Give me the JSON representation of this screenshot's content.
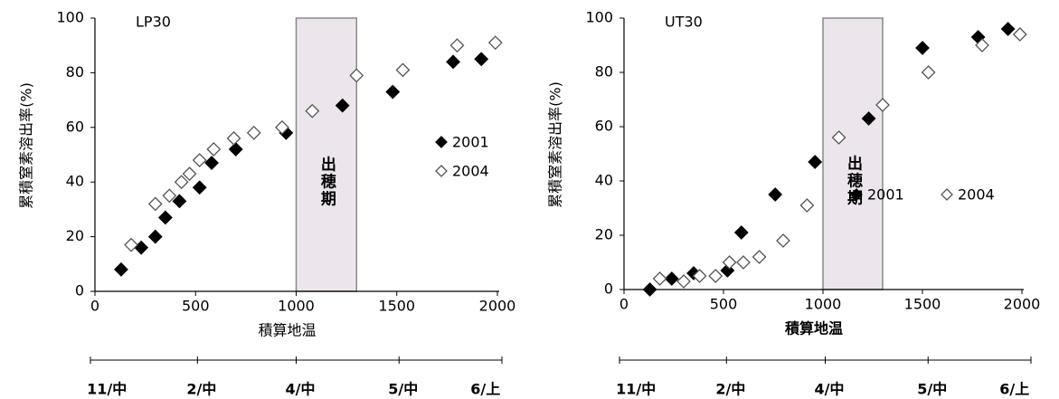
{
  "chart_data": [
    {
      "type": "scatter",
      "title": "LP30",
      "xlabel": "積算地温",
      "ylabel": "累積窒素溶出率(%)",
      "xlim": [
        0,
        2000
      ],
      "xticks": [
        0,
        500,
        1000,
        1500,
        2000
      ],
      "ylim": [
        0,
        100
      ],
      "yticks": [
        0,
        20,
        40,
        60,
        80,
        100
      ],
      "legend_orientation": "vertical",
      "shaded_span": {
        "x": [
          1000,
          1300
        ],
        "label": "出穂期"
      },
      "time_labels": [
        "11/中",
        "2/中",
        "4/中",
        "5/中",
        "6/上"
      ],
      "series": [
        {
          "name": "2001",
          "color": "#000000",
          "filled": true,
          "x": [
            130,
            230,
            300,
            350,
            420,
            520,
            580,
            700,
            950,
            1230,
            1480,
            1780,
            1920
          ],
          "values": [
            8,
            16,
            20,
            27,
            33,
            38,
            47,
            52,
            58,
            68,
            73,
            84,
            85
          ]
        },
        {
          "name": "2004",
          "color": "#555555",
          "filled": false,
          "x": [
            180,
            300,
            370,
            430,
            470,
            520,
            590,
            690,
            790,
            930,
            1080,
            1300,
            1530,
            1800,
            1990
          ],
          "values": [
            17,
            32,
            35,
            40,
            43,
            48,
            52,
            56,
            58,
            60,
            66,
            79,
            81,
            90,
            91
          ]
        }
      ]
    },
    {
      "type": "scatter",
      "title": "UT30",
      "xlabel": "積算地温",
      "ylabel": "累積窒素溶出率(%)",
      "xlim": [
        0,
        2000
      ],
      "xticks": [
        0,
        500,
        1000,
        1500,
        2000
      ],
      "ylim": [
        0,
        100
      ],
      "yticks": [
        0,
        20,
        40,
        60,
        80,
        100
      ],
      "legend_orientation": "horizontal",
      "shaded_span": {
        "x": [
          1000,
          1300
        ],
        "label": "出穂期"
      },
      "time_labels": [
        "11/中",
        "2/中",
        "4/中",
        "5/中",
        "6/上"
      ],
      "series": [
        {
          "name": "2001",
          "color": "#000000",
          "filled": true,
          "x": [
            130,
            240,
            350,
            520,
            590,
            760,
            960,
            1230,
            1500,
            1780,
            1930
          ],
          "values": [
            0,
            4,
            6,
            7,
            21,
            35,
            47,
            63,
            89,
            93,
            96
          ]
        },
        {
          "name": "2004",
          "color": "#555555",
          "filled": false,
          "x": [
            180,
            300,
            380,
            460,
            530,
            600,
            680,
            800,
            920,
            1080,
            1300,
            1530,
            1800,
            1990
          ],
          "values": [
            4,
            3,
            5,
            5,
            10,
            10,
            12,
            18,
            31,
            56,
            68,
            80,
            90,
            94
          ]
        }
      ]
    }
  ]
}
